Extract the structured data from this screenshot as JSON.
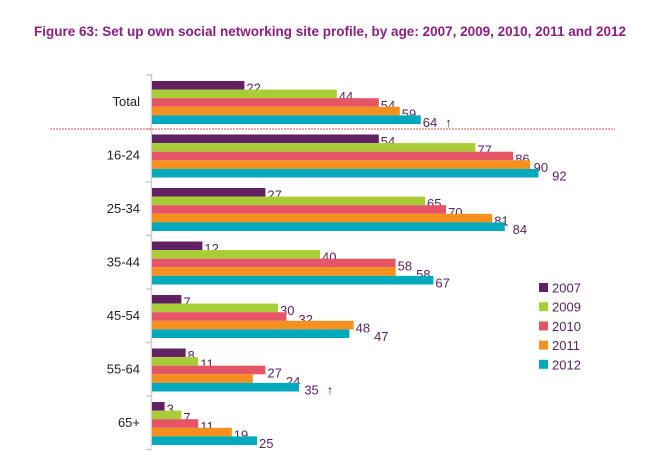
{
  "chart_data": {
    "type": "bar",
    "orientation": "horizontal",
    "title": "Figure 63: Set up own social networking site profile, by age: 2007, 2009, 2010, 2011 and 2012",
    "categories": [
      "Total",
      "16-24",
      "25-34",
      "35-44",
      "45-54",
      "55-64",
      "65+"
    ],
    "series": [
      {
        "name": "2007",
        "color": "#622163",
        "values": [
          22,
          54,
          27,
          12,
          7,
          8,
          3
        ]
      },
      {
        "name": "2009",
        "color": "#a8cd37",
        "values": [
          44,
          77,
          65,
          40,
          30,
          11,
          7
        ]
      },
      {
        "name": "2010",
        "color": "#e55566",
        "values": [
          54,
          86,
          70,
          58,
          32,
          27,
          11
        ]
      },
      {
        "name": "2011",
        "color": "#f5901e",
        "values": [
          59,
          90,
          81,
          58,
          48,
          24,
          19
        ]
      },
      {
        "name": "2012",
        "color": "#00a9bb",
        "values": [
          64,
          92,
          84,
          67,
          47,
          35,
          25
        ]
      }
    ],
    "annotations": [
      {
        "category": "Total",
        "series": "2012",
        "symbol": "↑"
      },
      {
        "category": "55-64",
        "series": "2012",
        "symbol": "↑"
      }
    ],
    "xlim": [
      0,
      100
    ],
    "legend_position": "right",
    "separator_after": "Total",
    "grid": false
  }
}
